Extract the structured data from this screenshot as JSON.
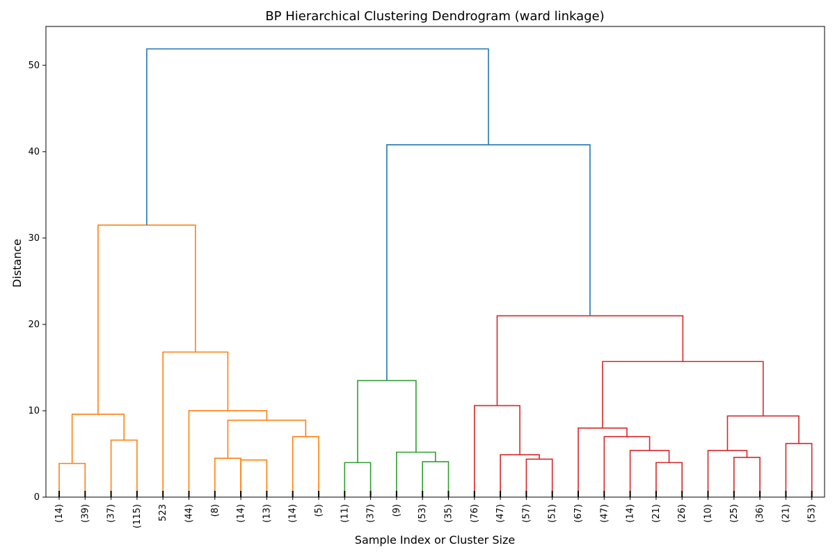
{
  "chart_data": {
    "type": "dendrogram",
    "title": "BP Hierarchical Clustering Dendrogram (ward linkage)",
    "xlabel": "Sample Index or Cluster Size",
    "ylabel": "Distance",
    "ylim": [
      0,
      54.5
    ],
    "yticks": [
      0,
      10,
      20,
      30,
      40,
      50
    ],
    "grid": false,
    "leaf_labels": [
      "(14)",
      "(39)",
      "(37)",
      "(115)",
      "523",
      "(44)",
      "(8)",
      "(14)",
      "(13)",
      "(14)",
      "(5)",
      "(11)",
      "(37)",
      "(9)",
      "(53)",
      "(35)",
      "(76)",
      "(47)",
      "(57)",
      "(51)",
      "(67)",
      "(47)",
      "(14)",
      "(21)",
      "(26)",
      "(10)",
      "(25)",
      "(36)",
      "(21)",
      "(53)"
    ],
    "colors": {
      "orange": "#ff7f0e",
      "green": "#2ca02c",
      "red": "#d62728",
      "blue": "#1f77b4"
    },
    "merges": [
      {
        "a": "L0",
        "b": "L1",
        "height": 3.9,
        "color": "orange"
      },
      {
        "a": "L2",
        "b": "L3",
        "height": 6.6,
        "color": "orange"
      },
      {
        "a": "C0",
        "b": "C1",
        "height": 9.6,
        "color": "orange"
      },
      {
        "a": "L6",
        "b": "L7",
        "height": 4.5,
        "color": "orange"
      },
      {
        "a": "L7",
        "b": "L8",
        "height": 4.3,
        "color": "orange"
      },
      {
        "a": "L9",
        "b": "L10",
        "height": 7.0,
        "color": "orange"
      },
      {
        "a": "C3",
        "b": "C5",
        "height": 8.9,
        "color": "orange"
      },
      {
        "a": "L5",
        "b": "C6",
        "height": 10.0,
        "color": "orange"
      },
      {
        "a": "L4",
        "b": "C7",
        "height": 16.8,
        "color": "orange"
      },
      {
        "a": "C2",
        "b": "C8",
        "height": 31.5,
        "color": "orange"
      },
      {
        "a": "L11",
        "b": "L12",
        "height": 4.0,
        "color": "green"
      },
      {
        "a": "L14",
        "b": "L15",
        "height": 4.1,
        "color": "green"
      },
      {
        "a": "L13",
        "b": "C11",
        "height": 5.2,
        "color": "green"
      },
      {
        "a": "C10",
        "b": "C12",
        "height": 13.5,
        "color": "green"
      },
      {
        "a": "L18",
        "b": "L19",
        "height": 4.4,
        "color": "red"
      },
      {
        "a": "L17",
        "b": "C14",
        "height": 4.9,
        "color": "red"
      },
      {
        "a": "L16",
        "b": "C15",
        "height": 10.6,
        "color": "red"
      },
      {
        "a": "L23",
        "b": "L24",
        "height": 4.0,
        "color": "red"
      },
      {
        "a": "L22",
        "b": "C17",
        "height": 5.4,
        "color": "red"
      },
      {
        "a": "L21",
        "b": "C18",
        "height": 7.0,
        "color": "red"
      },
      {
        "a": "L20",
        "b": "C19",
        "height": 8.0,
        "color": "red"
      },
      {
        "a": "L26",
        "b": "L27",
        "height": 4.6,
        "color": "red"
      },
      {
        "a": "L25",
        "b": "C21",
        "height": 5.4,
        "color": "red"
      },
      {
        "a": "L28",
        "b": "L29",
        "height": 6.2,
        "color": "red"
      },
      {
        "a": "C22",
        "b": "C23",
        "height": 9.4,
        "color": "red"
      },
      {
        "a": "C20",
        "b": "C24",
        "height": 15.7,
        "color": "red"
      },
      {
        "a": "C16",
        "b": "C25",
        "height": 21.0,
        "color": "red"
      },
      {
        "a": "C13",
        "b": "C26",
        "height": 40.8,
        "color": "blue"
      },
      {
        "a": "C9",
        "b": "C27",
        "height": 51.9,
        "color": "blue"
      }
    ]
  }
}
